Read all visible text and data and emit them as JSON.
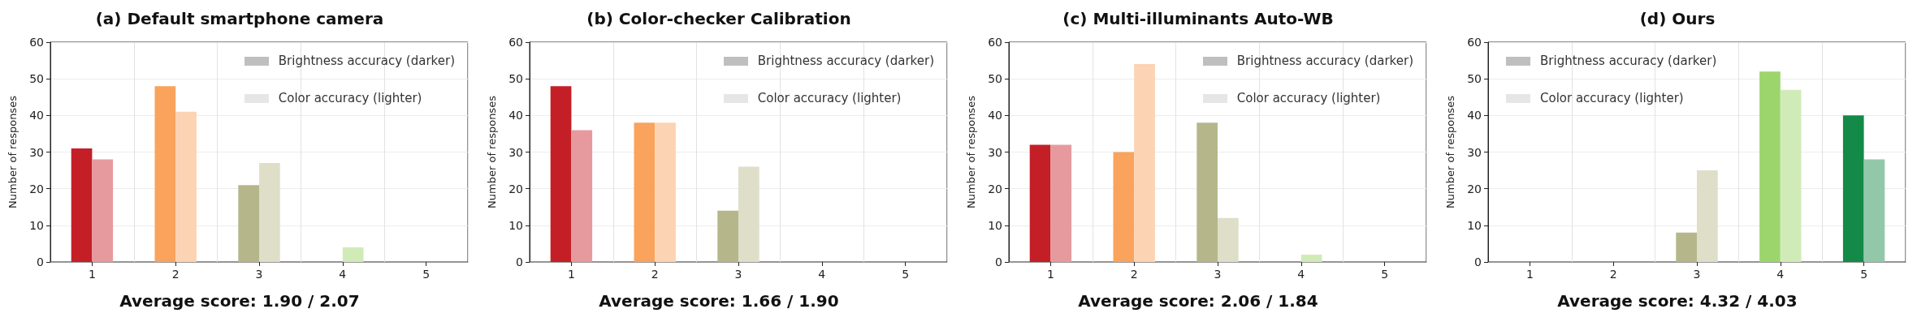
{
  "chart_data": [
    {
      "type": "bar",
      "title": "(a) Default smartphone camera",
      "ylabel": "Number of responses",
      "categories": [
        "1",
        "2",
        "3",
        "4",
        "5"
      ],
      "series": [
        {
          "colors": [
            "#c41f27",
            "#f9a35c",
            "#b5b78a",
            "#9dd56d",
            "#138a48"
          ],
          "values": [
            31,
            48,
            21,
            0,
            0
          ]
        },
        {
          "colors": [
            "#e69a9e",
            "#fcd3b3",
            "#dfdec8",
            "#d1ebb8",
            "#92c8a9"
          ],
          "values": [
            28,
            41,
            27,
            4,
            0
          ]
        }
      ],
      "ylim": [
        0,
        60
      ],
      "yticks": [
        0,
        10,
        20,
        30,
        40,
        50,
        60
      ],
      "grid": true,
      "annotations": [
        "Brightness accuracy (darker)",
        "Color accuracy (lighter)",
        "Average score: 1.90 / 2.07"
      ]
    },
    {
      "type": "bar",
      "title": "(b) Color-checker Calibration",
      "ylabel": "Number of responses",
      "categories": [
        "1",
        "2",
        "3",
        "4",
        "5"
      ],
      "series": [
        {
          "colors": [
            "#c41f27",
            "#f9a35c",
            "#b5b78a",
            "#9dd56d",
            "#138a48"
          ],
          "values": [
            48,
            38,
            14,
            0,
            0
          ]
        },
        {
          "colors": [
            "#e69a9e",
            "#fcd3b3",
            "#dfdec8",
            "#d1ebb8",
            "#92c8a9"
          ],
          "values": [
            36,
            38,
            26,
            0,
            0
          ]
        }
      ],
      "ylim": [
        0,
        60
      ],
      "yticks": [
        0,
        10,
        20,
        30,
        40,
        50,
        60
      ],
      "grid": true,
      "annotations": [
        "Brightness accuracy (darker)",
        "Color accuracy (lighter)",
        "Average score: 1.66 / 1.90"
      ]
    },
    {
      "type": "bar",
      "title": "(c) Multi-illuminants Auto-WB",
      "ylabel": "Number of responses",
      "categories": [
        "1",
        "2",
        "3",
        "4",
        "5"
      ],
      "series": [
        {
          "colors": [
            "#c41f27",
            "#f9a35c",
            "#b5b78a",
            "#9dd56d",
            "#138a48"
          ],
          "values": [
            32,
            30,
            38,
            0,
            0
          ]
        },
        {
          "colors": [
            "#e69a9e",
            "#fcd3b3",
            "#dfdec8",
            "#d1ebb8",
            "#92c8a9"
          ],
          "values": [
            32,
            54,
            12,
            2,
            0
          ]
        }
      ],
      "ylim": [
        0,
        60
      ],
      "yticks": [
        0,
        10,
        20,
        30,
        40,
        50,
        60
      ],
      "grid": true,
      "annotations": [
        "Brightness accuracy (darker)",
        "Color accuracy (lighter)",
        "Average score: 2.06 / 1.84"
      ]
    },
    {
      "type": "bar",
      "title": "(d) Ours",
      "ylabel": "Number of responses",
      "categories": [
        "1",
        "2",
        "3",
        "4",
        "5"
      ],
      "series": [
        {
          "colors": [
            "#c41f27",
            "#f9a35c",
            "#b5b78a",
            "#9dd56d",
            "#138a48"
          ],
          "values": [
            0,
            0,
            8,
            52,
            40
          ]
        },
        {
          "colors": [
            "#e69a9e",
            "#fcd3b3",
            "#dfdec8",
            "#d1ebb8",
            "#92c8a9"
          ],
          "values": [
            0,
            0,
            25,
            47,
            28
          ]
        }
      ],
      "ylim": [
        0,
        60
      ],
      "yticks": [
        0,
        10,
        20,
        30,
        40,
        50,
        60
      ],
      "grid": true,
      "annotations": [
        "Brightness accuracy (darker)",
        "Color accuracy (lighter)",
        "Average score: 4.32 / 4.03"
      ]
    }
  ]
}
